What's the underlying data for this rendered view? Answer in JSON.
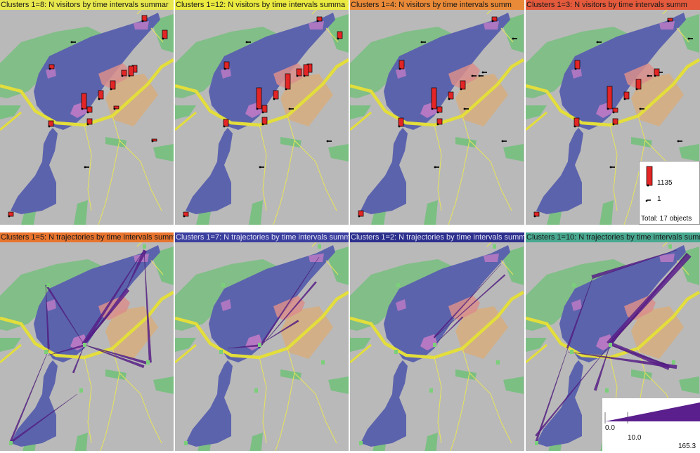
{
  "panels": [
    {
      "title": "Clusters 1=8: N visitors by time intervals summar",
      "title_bg": "#e8e84e",
      "kind": "bars"
    },
    {
      "title": "Clusters 1=12: N visitors by time intervals summa",
      "title_bg": "#eaea40",
      "kind": "bars"
    },
    {
      "title": "Clusters 1=4: N visitors by time intervals summ",
      "title_bg": "#e98a38",
      "kind": "bars"
    },
    {
      "title": "Clusters 1=3: N visitors by time intervals summ",
      "title_bg": "#e45a3c",
      "kind": "bars"
    },
    {
      "title": "Clusters 1=5: N trajectories by time intervals summ",
      "title_bg": "#e8742e",
      "kind": "flows"
    },
    {
      "title": "Clusters 1=7: N trajectories by time intervals summ",
      "title_bg": "#3b3f9e",
      "kind": "flows"
    },
    {
      "title": "Clusters 1=2: N trajectories by time intervals summ",
      "title_bg": "#2c2f8c",
      "kind": "flows"
    },
    {
      "title": "Clusters 1=10: N trajectories by time intervals summ",
      "title_bg": "#48a890",
      "kind": "flows"
    }
  ],
  "legend_visitors": {
    "max_label": "1135",
    "min_label": "1",
    "total_label": "Total: 17 objects"
  },
  "legend_flows": {
    "label_0": "0.0",
    "label_1": "10.0",
    "label_2": "165.3"
  },
  "colors": {
    "map_bg": "#b9b9b9",
    "water": "#5c63ad",
    "green": "#7cbf83",
    "road": "#e3de3b",
    "path": "#e8e45a",
    "building": "#d98e8b",
    "sand": "#d7ad7e",
    "bar": "#e32525",
    "flow": "#5a1f8c"
  }
}
